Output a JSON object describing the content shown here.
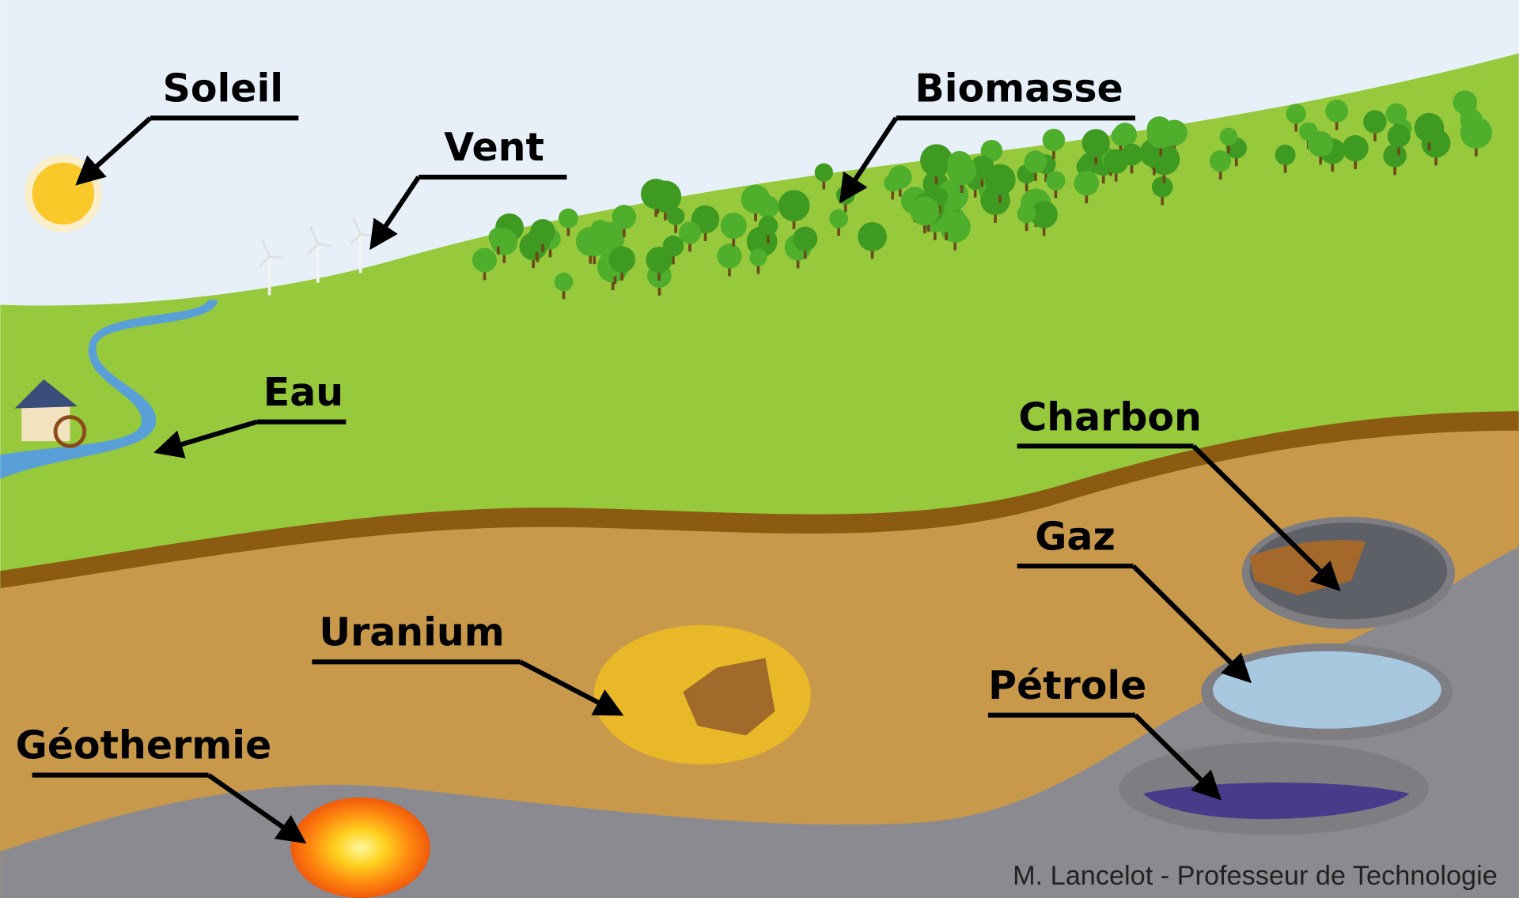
{
  "labels": {
    "soleil": "Soleil",
    "vent": "Vent",
    "biomasse": "Biomasse",
    "eau": "Eau",
    "charbon": "Charbon",
    "gaz": "Gaz",
    "petrole": "Pétrole",
    "uranium": "Uranium",
    "geothermie": "Géothermie"
  },
  "credit": "M. Lancelot - Professeur de Technologie"
}
